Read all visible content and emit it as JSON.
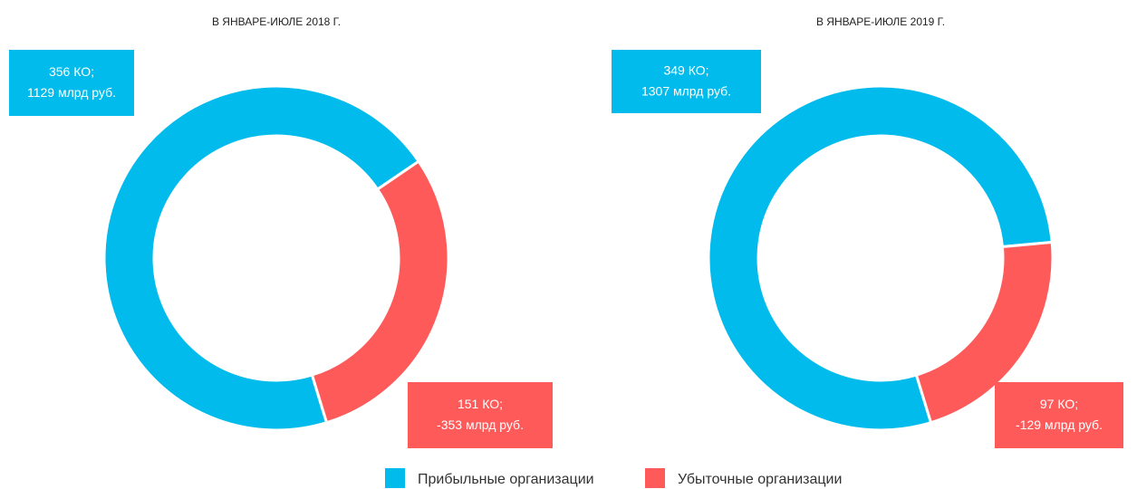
{
  "chart_data": [
    {
      "type": "pie",
      "title": "В ЯНВАРЕ-ИЮЛЕ 2018 Г.",
      "categories": [
        "Прибыльные организации",
        "Убыточные организации"
      ],
      "values": [
        356,
        151
      ],
      "value_labels": [
        "356 КО;",
        "151 КО;"
      ],
      "amount_labels": [
        "1129 млрд руб.",
        "-353 млрд руб."
      ],
      "colors": [
        "#00bbec",
        "#ff5a5a"
      ]
    },
    {
      "type": "pie",
      "title": "В ЯНВАРЕ-ИЮЛЕ 2019 Г.",
      "categories": [
        "Прибыльные организации",
        "Убыточные организации"
      ],
      "values": [
        349,
        97
      ],
      "value_labels": [
        "349 КО;",
        "97 КО;"
      ],
      "amount_labels": [
        "1307 млрд руб.",
        "-129 млрд руб."
      ],
      "colors": [
        "#00bbec",
        "#ff5a5a"
      ]
    }
  ]
}
